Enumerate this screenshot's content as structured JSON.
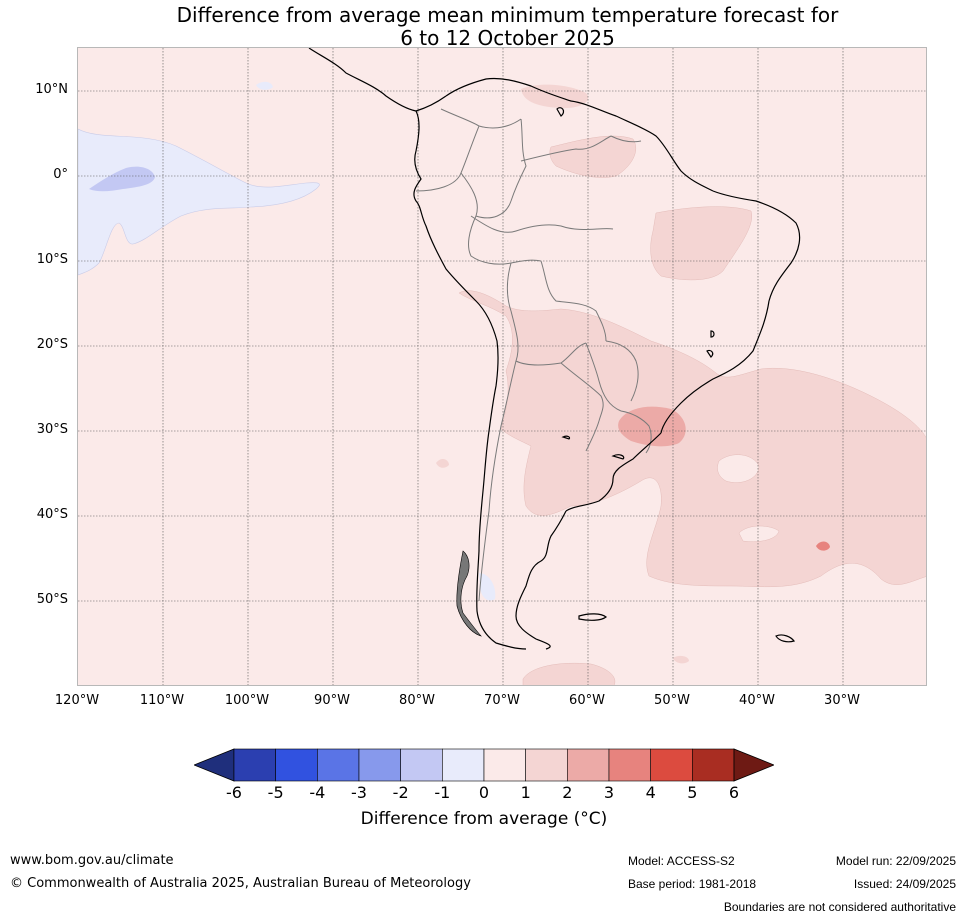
{
  "title": {
    "line1": "Difference from average mean minimum temperature forecast for",
    "line2": "6 to 12 October 2025"
  },
  "map": {
    "lat_labels": [
      "10°N",
      "0°",
      "10°S",
      "20°S",
      "30°S",
      "40°S",
      "50°S"
    ],
    "lon_labels": [
      "120°W",
      "110°W",
      "100°W",
      "90°W",
      "80°W",
      "70°W",
      "60°W",
      "50°W",
      "40°W",
      "30°W"
    ],
    "colors": {
      "background_anomaly_0_1": "#fbeae9",
      "anomaly_1_2": "#f4d5d3",
      "anomaly_2_3": "#ecaaa7",
      "anomaly_3_4": "#e7837e",
      "anomaly_neg1_0": "#e8ebfb",
      "anomaly_neg2_neg1": "#c3c8f3",
      "coastline": "#000000",
      "borders": "#777777",
      "gridline": "#555555"
    }
  },
  "colorbar": {
    "ticks": [
      "-6",
      "-5",
      "-4",
      "-3",
      "-2",
      "-1",
      "0",
      "1",
      "2",
      "3",
      "4",
      "5",
      "6"
    ],
    "colors": [
      "#1f2f7c",
      "#2b3fb0",
      "#3152e0",
      "#5a74e6",
      "#8799ec",
      "#c3c8f3",
      "#e8ebfb",
      "#fbeae9",
      "#f4d5d3",
      "#ecaaa7",
      "#e7837e",
      "#dc4b3f",
      "#a92d22",
      "#6e1a14"
    ],
    "label": "Difference from average (°C)"
  },
  "footer": {
    "website": "www.bom.gov.au/climate",
    "copyright": "© Commonwealth of Australia 2025, Australian Bureau of Meteorology",
    "model": "Model: ACCESS-S2",
    "base_period": "Base period: 1981-2018",
    "model_run": "Model run: 22/09/2025",
    "issued": "Issued: 24/09/2025",
    "disclaimer": "Boundaries are not considered authoritative"
  }
}
